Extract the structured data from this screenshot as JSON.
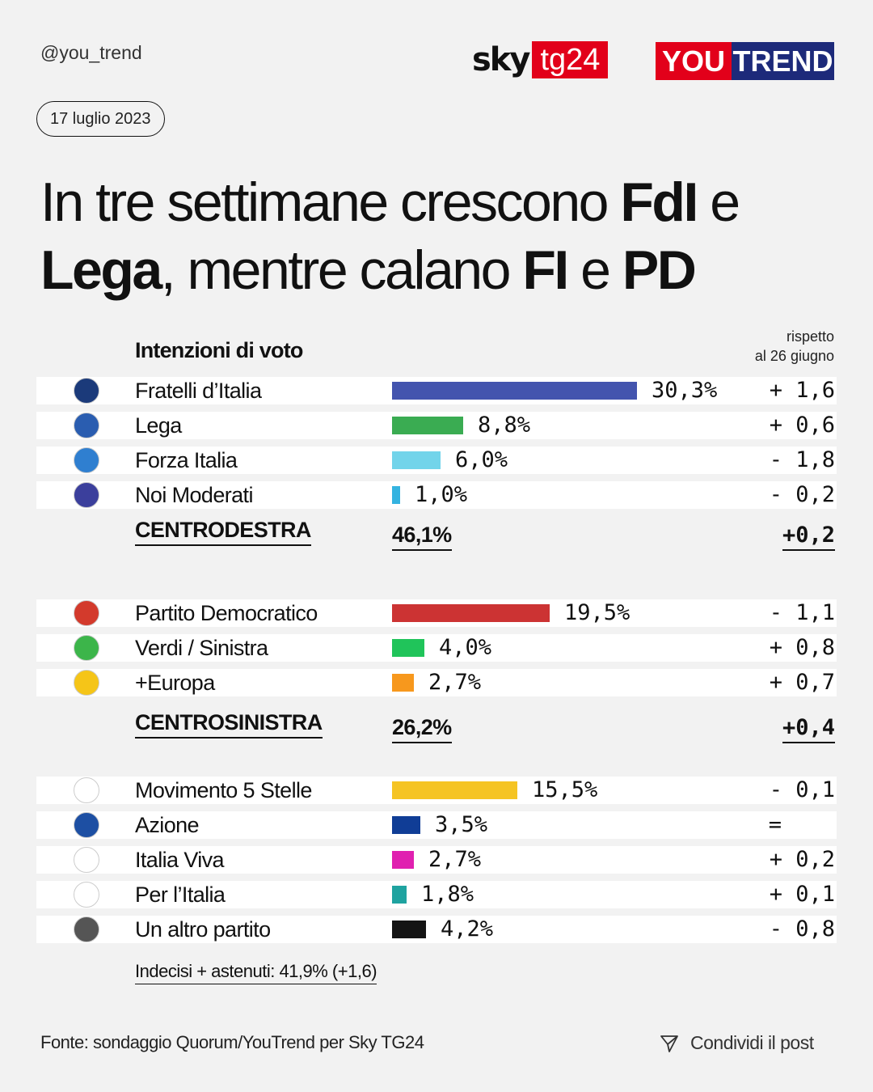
{
  "header": {
    "handle": "@you_trend",
    "sky": "sky",
    "tg24": "tg24",
    "you": "YOU",
    "trend": "TREND",
    "date": "17 luglio 2023"
  },
  "title": {
    "part1": "In tre settimane crescono ",
    "bold1": "FdI",
    "part2": " e ",
    "bold2": "Lega",
    "part3": ", mentre calano ",
    "bold3": "FI",
    "part4": " e ",
    "bold4": "PD"
  },
  "table": {
    "column_header": "Intenzioni di voto",
    "change_header_1": "rispetto",
    "change_header_2": "al 26 giugno"
  },
  "chart_data": {
    "type": "bar",
    "groups": [
      {
        "total_label": "CENTRODESTRA",
        "total_value": "46,1%",
        "total_delta": "+0,2",
        "parties": [
          {
            "name": "Fratelli d’Italia",
            "value": 30.3,
            "label": "30,3%",
            "delta": "+ 1,6",
            "color": "#4354ae",
            "icon_color": "#1b3a7a"
          },
          {
            "name": "Lega",
            "value": 8.8,
            "label": "8,8%",
            "delta": "+ 0,6",
            "color": "#3aac52",
            "icon_color": "#2a5db0"
          },
          {
            "name": "Forza Italia",
            "value": 6.0,
            "label": "6,0%",
            "delta": "- 1,8",
            "color": "#72d4ea",
            "icon_color": "#2f7fd0"
          },
          {
            "name": "Noi Moderati",
            "value": 1.0,
            "label": "1,0%",
            "delta": "- 0,2",
            "color": "#34b3e0",
            "icon_color": "#3b3f9c"
          }
        ]
      },
      {
        "total_label": "CENTROSINISTRA",
        "total_value": "26,2%",
        "total_delta": "+0,4",
        "parties": [
          {
            "name": "Partito Democratico",
            "value": 19.5,
            "label": "19,5%",
            "delta": "- 1,1",
            "color": "#cc3333",
            "icon_color": "#d33a2c"
          },
          {
            "name": "Verdi / Sinistra",
            "value": 4.0,
            "label": "4,0%",
            "delta": "+ 0,8",
            "color": "#20c45a",
            "icon_color": "#3cb54a"
          },
          {
            "name": "+Europa",
            "value": 2.7,
            "label": "2,7%",
            "delta": "+ 0,7",
            "color": "#f7981d",
            "icon_color": "#f5c518"
          }
        ]
      },
      {
        "parties": [
          {
            "name": "Movimento 5 Stelle",
            "value": 15.5,
            "label": "15,5%",
            "delta": "- 0,1",
            "color": "#f5c423",
            "icon_color": "#ffffff"
          },
          {
            "name": "Azione",
            "value": 3.5,
            "label": "3,5%",
            "delta": "=",
            "color": "#103d96",
            "icon_color": "#1d4fa3"
          },
          {
            "name": "Italia Viva",
            "value": 2.7,
            "label": "2,7%",
            "delta": "+ 0,2",
            "color": "#e020b0",
            "icon_color": "#ffffff"
          },
          {
            "name": "Per l’Italia",
            "value": 1.8,
            "label": "1,8%",
            "delta": "+ 0,1",
            "color": "#1fa3a0",
            "icon_color": "#ffffff"
          },
          {
            "name": "Un altro partito",
            "value": 4.2,
            "label": "4,2%",
            "delta": "- 0,8",
            "color": "#141414",
            "icon_color": "#555555"
          }
        ]
      }
    ],
    "footnote": "Indecisi + astenuti: 41,9% (+1,6)"
  },
  "footer": {
    "source": "Fonte: sondaggio Quorum/YouTrend per Sky TG24",
    "share": "Condividi il post"
  }
}
